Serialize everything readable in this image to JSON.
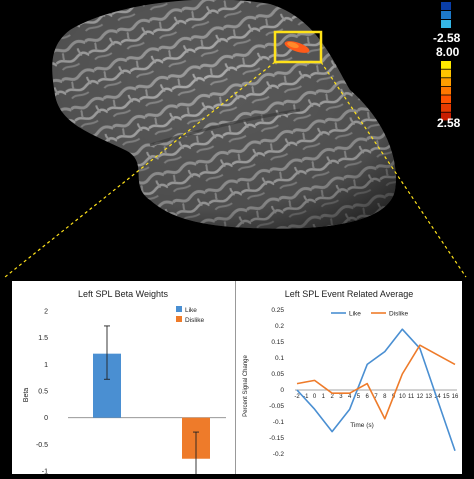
{
  "colorbar": {
    "neg_label": "-2.58",
    "pos_max_label": "8.00",
    "pos_min_label": "2.58",
    "neg_colors": [
      "#0a3ea8",
      "#1d79c9",
      "#35b7e6"
    ],
    "pos_colors": [
      "#ffea00",
      "#ffc400",
      "#ff9d00",
      "#ff7700",
      "#ff5200",
      "#e63a00",
      "#c81d00"
    ]
  },
  "chart_data": [
    {
      "type": "bar",
      "title": "Left SPL Beta Weights",
      "ylabel": "Beta",
      "ylim": [
        -1,
        2
      ],
      "yticks": [
        "2",
        "1.5",
        "1",
        "0.5",
        "0",
        "-0.5",
        "-1"
      ],
      "legend": [
        "Like",
        "Dislike"
      ],
      "legend_position": "top-right",
      "series": [
        {
          "name": "Like",
          "value": 1.2,
          "err_low": 0.72,
          "err_high": 1.72,
          "color": "#4a8fd2"
        },
        {
          "name": "Dislike",
          "value": -0.77,
          "err_low": -1.28,
          "err_high": -0.27,
          "color": "#ee7b2a"
        }
      ]
    },
    {
      "type": "line",
      "title": "Left SPL Event Related Average",
      "xlabel": "Time (s)",
      "ylabel": "Percent Signal Change",
      "ylim": [
        -0.2,
        0.25
      ],
      "yticks": [
        "0.25",
        "0.2",
        "0.15",
        "0.1",
        "0.05",
        "0",
        "-0.05",
        "-0.1",
        "-0.15",
        "-0.2"
      ],
      "x": [
        -2,
        0,
        2,
        4,
        6,
        8,
        10,
        12,
        14,
        16
      ],
      "xticks": [
        "-2",
        "-1",
        "0",
        "1",
        "2",
        "3",
        "4",
        "5",
        "6",
        "7",
        "8",
        "9",
        "10",
        "11",
        "12",
        "13",
        "14",
        "15",
        "16"
      ],
      "legend_position": "top",
      "series": [
        {
          "name": "Like",
          "color": "#4a8fd2",
          "values": [
            0.0,
            -0.06,
            -0.13,
            -0.06,
            0.08,
            0.12,
            0.19,
            0.13,
            -0.03,
            -0.19
          ]
        },
        {
          "name": "Dislike",
          "color": "#ee7b2a",
          "values": [
            0.02,
            0.03,
            -0.01,
            -0.01,
            0.02,
            -0.09,
            0.05,
            0.14,
            0.11,
            0.08
          ]
        }
      ]
    }
  ]
}
